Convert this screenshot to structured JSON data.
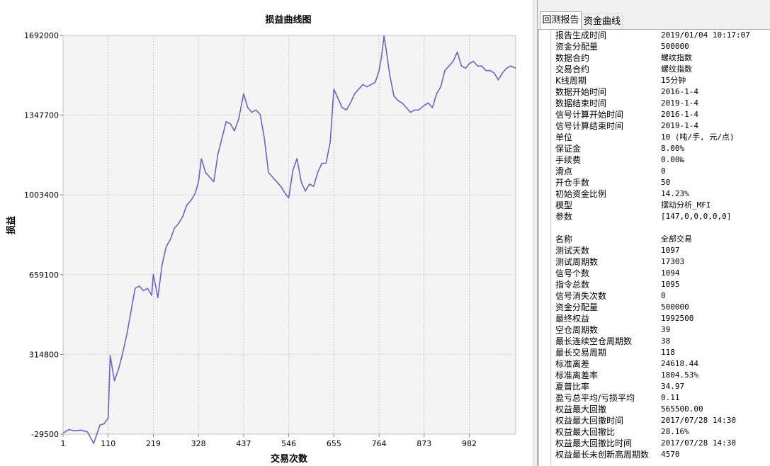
{
  "chart": {
    "title": "损益曲线图",
    "xlabel": "交易次数",
    "ylabel": "损益"
  },
  "chart_data": {
    "type": "line",
    "title": "损益曲线图",
    "xlabel": "交易次数",
    "ylabel": "损益",
    "xlim": [
      1,
      1094
    ],
    "ylim": [
      -29500,
      1692000
    ],
    "grid": true,
    "x_ticks": [
      "1",
      "110",
      "219",
      "328",
      "437",
      "546",
      "655",
      "764",
      "873",
      "982"
    ],
    "y_ticks": [
      "-29500",
      "314800",
      "659100",
      "1003400",
      "1347700",
      "1692000"
    ],
    "series": [
      {
        "color": "#6a63c9",
        "points": [
          [
            1,
            -25000
          ],
          [
            15,
            -10000
          ],
          [
            30,
            -15000
          ],
          [
            45,
            -12000
          ],
          [
            60,
            -20000
          ],
          [
            75,
            -70000
          ],
          [
            90,
            10000
          ],
          [
            100,
            15000
          ],
          [
            110,
            40000
          ],
          [
            115,
            310000
          ],
          [
            125,
            200000
          ],
          [
            135,
            250000
          ],
          [
            145,
            320000
          ],
          [
            155,
            400000
          ],
          [
            165,
            500000
          ],
          [
            175,
            600000
          ],
          [
            185,
            610000
          ],
          [
            195,
            590000
          ],
          [
            205,
            600000
          ],
          [
            215,
            570000
          ],
          [
            219,
            660000
          ],
          [
            230,
            560000
          ],
          [
            240,
            700000
          ],
          [
            250,
            780000
          ],
          [
            260,
            810000
          ],
          [
            270,
            860000
          ],
          [
            280,
            880000
          ],
          [
            290,
            910000
          ],
          [
            300,
            960000
          ],
          [
            310,
            980000
          ],
          [
            320,
            1010000
          ],
          [
            328,
            1060000
          ],
          [
            335,
            1160000
          ],
          [
            345,
            1100000
          ],
          [
            355,
            1080000
          ],
          [
            365,
            1060000
          ],
          [
            375,
            1180000
          ],
          [
            385,
            1250000
          ],
          [
            395,
            1320000
          ],
          [
            405,
            1310000
          ],
          [
            415,
            1280000
          ],
          [
            425,
            1330000
          ],
          [
            437,
            1440000
          ],
          [
            447,
            1380000
          ],
          [
            457,
            1360000
          ],
          [
            467,
            1370000
          ],
          [
            477,
            1350000
          ],
          [
            487,
            1250000
          ],
          [
            497,
            1100000
          ],
          [
            507,
            1080000
          ],
          [
            517,
            1060000
          ],
          [
            527,
            1040000
          ],
          [
            537,
            1010000
          ],
          [
            546,
            990000
          ],
          [
            556,
            1110000
          ],
          [
            566,
            1160000
          ],
          [
            576,
            1060000
          ],
          [
            586,
            1020000
          ],
          [
            596,
            1050000
          ],
          [
            606,
            1040000
          ],
          [
            616,
            1100000
          ],
          [
            626,
            1140000
          ],
          [
            636,
            1140000
          ],
          [
            646,
            1230000
          ],
          [
            655,
            1460000
          ],
          [
            665,
            1420000
          ],
          [
            675,
            1380000
          ],
          [
            685,
            1370000
          ],
          [
            695,
            1400000
          ],
          [
            705,
            1440000
          ],
          [
            715,
            1460000
          ],
          [
            725,
            1480000
          ],
          [
            735,
            1470000
          ],
          [
            745,
            1480000
          ],
          [
            755,
            1490000
          ],
          [
            764,
            1540000
          ],
          [
            770,
            1600000
          ],
          [
            776,
            1690000
          ],
          [
            782,
            1620000
          ],
          [
            790,
            1520000
          ],
          [
            800,
            1430000
          ],
          [
            810,
            1410000
          ],
          [
            820,
            1400000
          ],
          [
            830,
            1380000
          ],
          [
            840,
            1360000
          ],
          [
            850,
            1370000
          ],
          [
            860,
            1370000
          ],
          [
            873,
            1390000
          ],
          [
            883,
            1400000
          ],
          [
            893,
            1380000
          ],
          [
            903,
            1440000
          ],
          [
            913,
            1470000
          ],
          [
            923,
            1540000
          ],
          [
            933,
            1560000
          ],
          [
            943,
            1580000
          ],
          [
            953,
            1620000
          ],
          [
            963,
            1560000
          ],
          [
            973,
            1550000
          ],
          [
            982,
            1570000
          ],
          [
            992,
            1580000
          ],
          [
            1002,
            1560000
          ],
          [
            1012,
            1560000
          ],
          [
            1022,
            1540000
          ],
          [
            1032,
            1540000
          ],
          [
            1042,
            1530000
          ],
          [
            1052,
            1500000
          ],
          [
            1062,
            1530000
          ],
          [
            1072,
            1550000
          ],
          [
            1082,
            1560000
          ],
          [
            1094,
            1550000
          ]
        ]
      }
    ]
  },
  "tabs": {
    "report": "回测报告",
    "curve": "资金曲线"
  },
  "report": [
    {
      "k": "报告生成时间",
      "v": "2019/01/04 10:17:07"
    },
    {
      "k": "资金分配量",
      "v": "500000"
    },
    {
      "k": "数据合约",
      "v": "螺纹指数"
    },
    {
      "k": "交易合约",
      "v": "螺纹指数"
    },
    {
      "k": "K线周期",
      "v": "15分钟"
    },
    {
      "k": "数据开始时间",
      "v": "2016-1-4"
    },
    {
      "k": "数据结束时间",
      "v": "2019-1-4"
    },
    {
      "k": "信号计算开始时间",
      "v": "2016-1-4"
    },
    {
      "k": "信号计算结束时间",
      "v": "2019-1-4"
    },
    {
      "k": "单位",
      "v": "10 (吨/手, 元/点)"
    },
    {
      "k": "保证金",
      "v": "8.00%"
    },
    {
      "k": "手续费",
      "v": "0.00‰"
    },
    {
      "k": "滑点",
      "v": "0"
    },
    {
      "k": "开仓手数",
      "v": "50"
    },
    {
      "k": "初始资金比例",
      "v": "14.23%"
    },
    {
      "k": "模型",
      "v": "摆动分析_MFI"
    },
    {
      "k": "参数",
      "v": "[147,0,0,0,0,0]"
    },
    {
      "k": "",
      "v": ""
    },
    {
      "k": "名称",
      "v": "全部交易"
    },
    {
      "k": "测试天数",
      "v": "1097"
    },
    {
      "k": "测试周期数",
      "v": "17303"
    },
    {
      "k": "信号个数",
      "v": "1094"
    },
    {
      "k": "指令总数",
      "v": "1095"
    },
    {
      "k": "信号消失次数",
      "v": "0"
    },
    {
      "k": "资金分配量",
      "v": "500000"
    },
    {
      "k": "最终权益",
      "v": "1992500"
    },
    {
      "k": "空仓周期数",
      "v": "39"
    },
    {
      "k": "最长连续空仓周期数",
      "v": "38"
    },
    {
      "k": "最长交易周期",
      "v": "118"
    },
    {
      "k": "标准离差",
      "v": "24618.44"
    },
    {
      "k": "标准离差率",
      "v": "1804.53%"
    },
    {
      "k": "夏普比率",
      "v": "34.97"
    },
    {
      "k": "盈亏总平均/亏损平均",
      "v": "0.11"
    },
    {
      "k": "权益最大回撤",
      "v": "565500.00"
    },
    {
      "k": "权益最大回撤时间",
      "v": "2017/07/28 14:30"
    },
    {
      "k": "权益最大回撤比",
      "v": "28.16%"
    },
    {
      "k": "权益最大回撤比时间",
      "v": "2017/07/28 14:30"
    },
    {
      "k": "权益最长未创新高周期数",
      "v": "4570"
    }
  ]
}
